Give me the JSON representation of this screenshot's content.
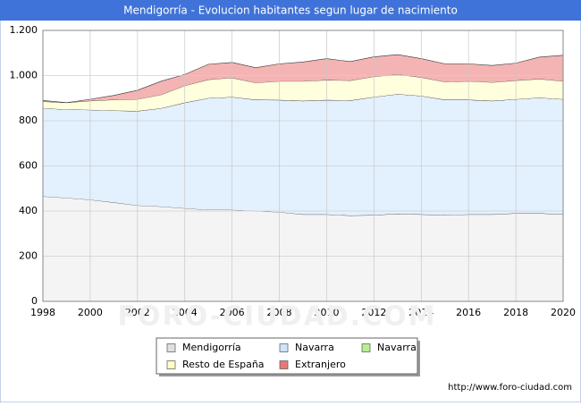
{
  "chart_data": {
    "type": "stacked-area",
    "title": "Mendigorría - Evolucion habitantes segun lugar de nacimiento",
    "watermark": "FORO-CIUDAD.COM",
    "source": "http://www.foro-ciudad.com",
    "x": [
      1998,
      1999,
      2000,
      2001,
      2002,
      2003,
      2004,
      2005,
      2006,
      2007,
      2008,
      2009,
      2010,
      2011,
      2012,
      2013,
      2014,
      2015,
      2016,
      2017,
      2018,
      2019,
      2020
    ],
    "series": [
      {
        "name": "Mendigorría",
        "color": "#f4f4f4",
        "legend_color": "#e0e0e0",
        "values": [
          465,
          458,
          450,
          438,
          425,
          420,
          412,
          405,
          405,
          400,
          395,
          385,
          385,
          380,
          382,
          388,
          385,
          382,
          385,
          385,
          390,
          390,
          385
        ]
      },
      {
        "name": "Navarra",
        "color": "#e3f0fd",
        "legend_color": "#cfe4fb",
        "values": [
          390,
          392,
          398,
          407,
          418,
          435,
          468,
          495,
          500,
          493,
          497,
          503,
          507,
          510,
          523,
          530,
          525,
          511,
          508,
          503,
          505,
          512,
          510
        ]
      },
      {
        "name": "Navarra",
        "color": "#ccf5b0",
        "legend_color": "#b8ee90",
        "values": [
          0,
          0,
          0,
          0,
          0,
          0,
          0,
          0,
          0,
          0,
          0,
          0,
          0,
          0,
          0,
          0,
          0,
          0,
          0,
          0,
          0,
          0,
          0
        ]
      },
      {
        "name": "Resto de España",
        "color": "#ffffdd",
        "legend_color": "#ffffc8",
        "values": [
          30,
          30,
          40,
          48,
          52,
          60,
          75,
          82,
          85,
          75,
          83,
          87,
          88,
          88,
          90,
          87,
          82,
          79,
          82,
          82,
          83,
          83,
          80
        ]
      },
      {
        "name": "Extranjero",
        "color": "#f4b4b4",
        "legend_color": "#e87878",
        "values": [
          5,
          0,
          7,
          19,
          40,
          60,
          50,
          68,
          68,
          67,
          77,
          85,
          95,
          84,
          88,
          88,
          83,
          80,
          77,
          75,
          77,
          97,
          115
        ]
      }
    ],
    "xlim": [
      1998,
      2020
    ],
    "xticks": [
      1998,
      2000,
      2002,
      2004,
      2006,
      2008,
      2010,
      2012,
      2014,
      2016,
      2018,
      2020
    ],
    "ylim": [
      0,
      1200
    ],
    "yticks": [
      0,
      200,
      400,
      600,
      800,
      {
        "value": 1000,
        "label": "1.000"
      },
      {
        "value": 1200,
        "label": "1.200"
      }
    ],
    "grid": true
  }
}
